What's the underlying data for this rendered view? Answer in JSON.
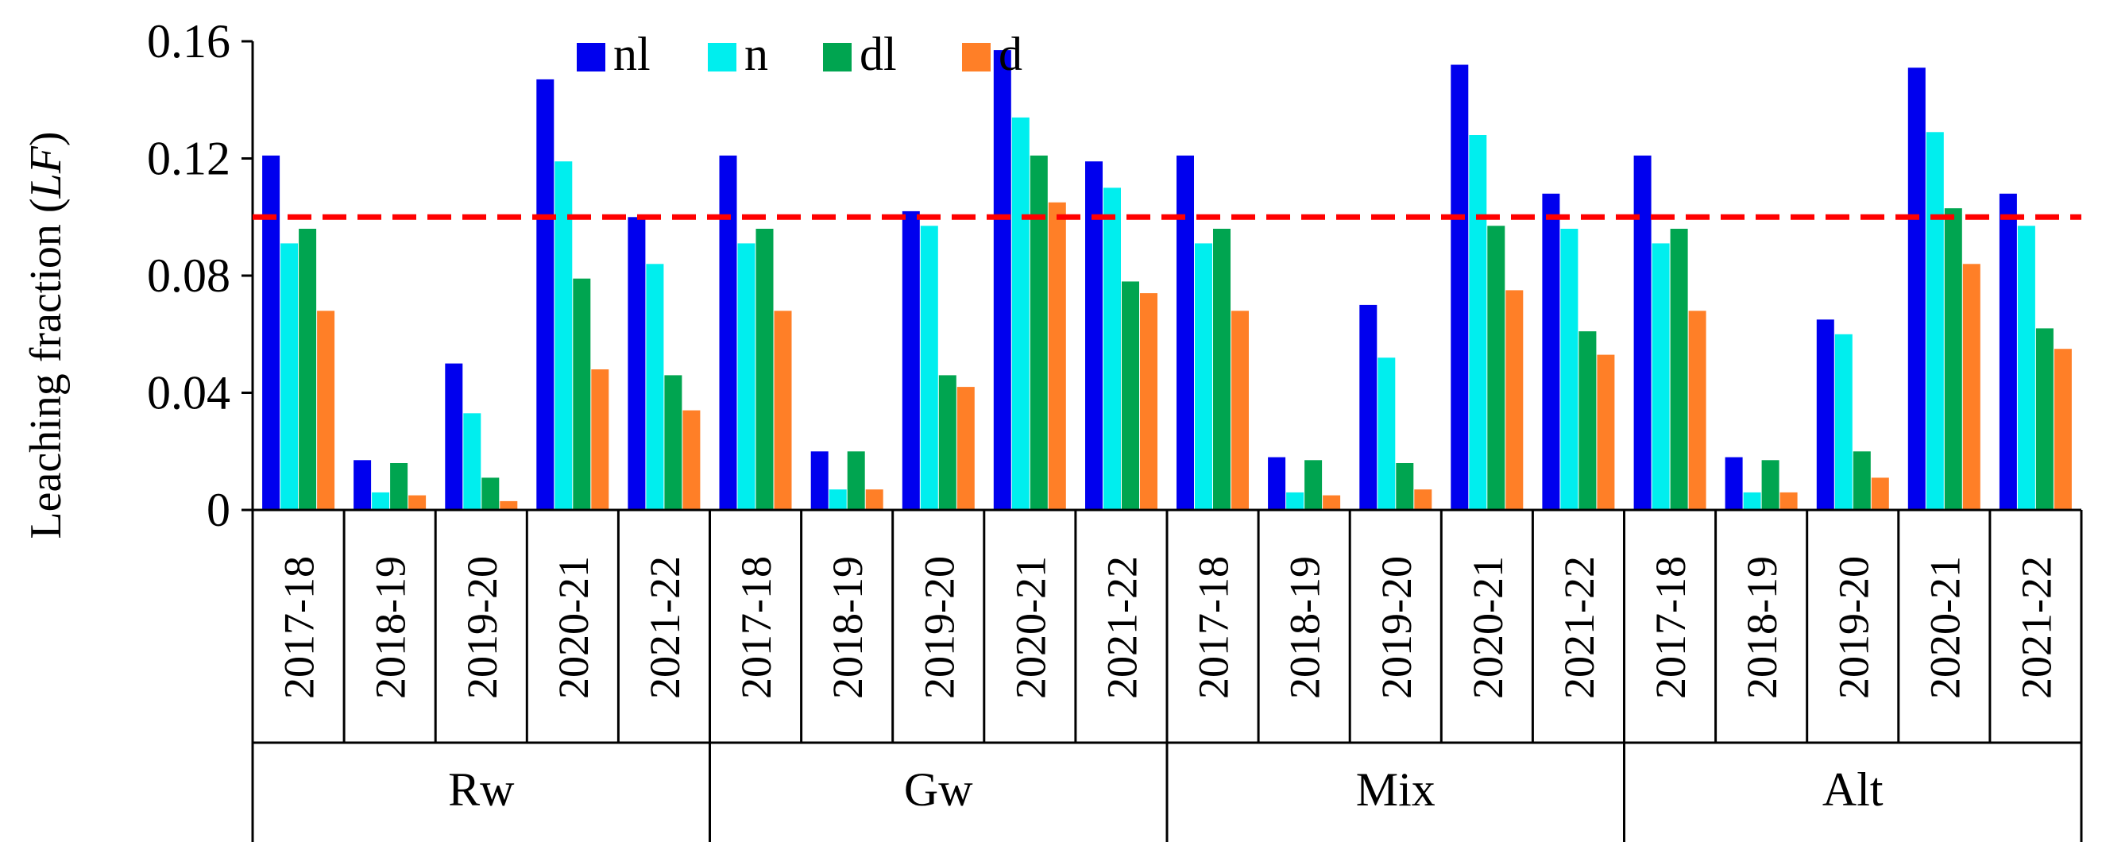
{
  "chart_data": {
    "type": "bar",
    "ylabel_main": "Leaching fraction (",
    "ylabel_italic": "LF",
    "ylabel_end": ")",
    "ylim": [
      0,
      0.16
    ],
    "yticks": [
      "0",
      "0.04",
      "0.08",
      "0.12",
      "0.16"
    ],
    "ytick_values": [
      0,
      0.04,
      0.08,
      0.12,
      0.16
    ],
    "grid": false,
    "legend_position": "top-left",
    "reference_line": {
      "value": 0.1,
      "color": "#ff0000",
      "style": "dashed"
    },
    "groups": [
      {
        "name": "Rw",
        "seasons": [
          "2017-18",
          "2018-19",
          "2019-20",
          "2020-21",
          "2021-22"
        ]
      },
      {
        "name": "Gw",
        "seasons": [
          "2017-18",
          "2018-19",
          "2019-20",
          "2020-21",
          "2021-22"
        ]
      },
      {
        "name": "Mix",
        "seasons": [
          "2017-18",
          "2018-19",
          "2019-20",
          "2020-21",
          "2021-22"
        ]
      },
      {
        "name": "Alt",
        "seasons": [
          "2017-18",
          "2018-19",
          "2019-20",
          "2020-21",
          "2021-22"
        ]
      }
    ],
    "series": [
      {
        "name": "nl",
        "color": "#0000ee",
        "values": [
          0.121,
          0.017,
          0.05,
          0.147,
          0.1,
          0.121,
          0.02,
          0.102,
          0.157,
          0.119,
          0.121,
          0.018,
          0.07,
          0.152,
          0.108,
          0.121,
          0.018,
          0.065,
          0.151,
          0.108
        ]
      },
      {
        "name": "n",
        "color": "#00eeee",
        "values": [
          0.091,
          0.006,
          0.033,
          0.119,
          0.084,
          0.091,
          0.007,
          0.097,
          0.134,
          0.11,
          0.091,
          0.006,
          0.052,
          0.128,
          0.096,
          0.091,
          0.006,
          0.06,
          0.129,
          0.097
        ]
      },
      {
        "name": "dl",
        "color": "#00a550",
        "values": [
          0.096,
          0.016,
          0.011,
          0.079,
          0.046,
          0.096,
          0.02,
          0.046,
          0.121,
          0.078,
          0.096,
          0.017,
          0.016,
          0.097,
          0.061,
          0.096,
          0.017,
          0.02,
          0.103,
          0.062
        ]
      },
      {
        "name": "d",
        "color": "#ff7f27",
        "values": [
          0.068,
          0.005,
          0.003,
          0.048,
          0.034,
          0.068,
          0.007,
          0.042,
          0.105,
          0.074,
          0.068,
          0.005,
          0.007,
          0.075,
          0.053,
          0.068,
          0.006,
          0.011,
          0.084,
          0.055
        ]
      }
    ]
  }
}
